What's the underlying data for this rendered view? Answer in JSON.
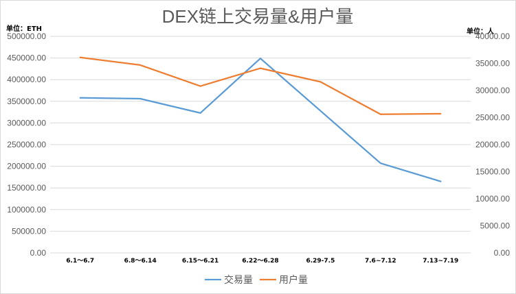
{
  "chart_data": {
    "type": "line",
    "title": "DEX链上交易量&用户量",
    "y_left_unit": "单位：ETH",
    "y_right_unit": "单位：人",
    "categories": [
      "6.1～6.7",
      "6.8～6.14",
      "6.15～6.21",
      "6.22～6.28",
      "6.29-7.5",
      "7.6~7.12",
      "7.13~7.19"
    ],
    "y_left": {
      "min": 0,
      "max": 500000,
      "step": 50000,
      "ticks": [
        "0.00",
        "50000.00",
        "100000.00",
        "150000.00",
        "200000.00",
        "250000.00",
        "300000.00",
        "350000.00",
        "400000.00",
        "450000.00",
        "500000.00"
      ]
    },
    "y_right": {
      "min": 0,
      "max": 40000,
      "step": 5000,
      "ticks": [
        "0.00",
        "5000.00",
        "10000.00",
        "15000.00",
        "20000.00",
        "25000.00",
        "30000.00",
        "35000.00",
        "40000.00"
      ]
    },
    "series": [
      {
        "name": "交易量",
        "axis": "left",
        "color": "#5b9bd5",
        "values": [
          358000,
          356000,
          323000,
          449000,
          328000,
          207000,
          165000
        ]
      },
      {
        "name": "用户量",
        "axis": "right",
        "color": "#ed7d31",
        "values": [
          36100,
          34700,
          30800,
          34100,
          31600,
          25600,
          25700
        ]
      }
    ],
    "grid": true,
    "legend_position": "bottom"
  }
}
